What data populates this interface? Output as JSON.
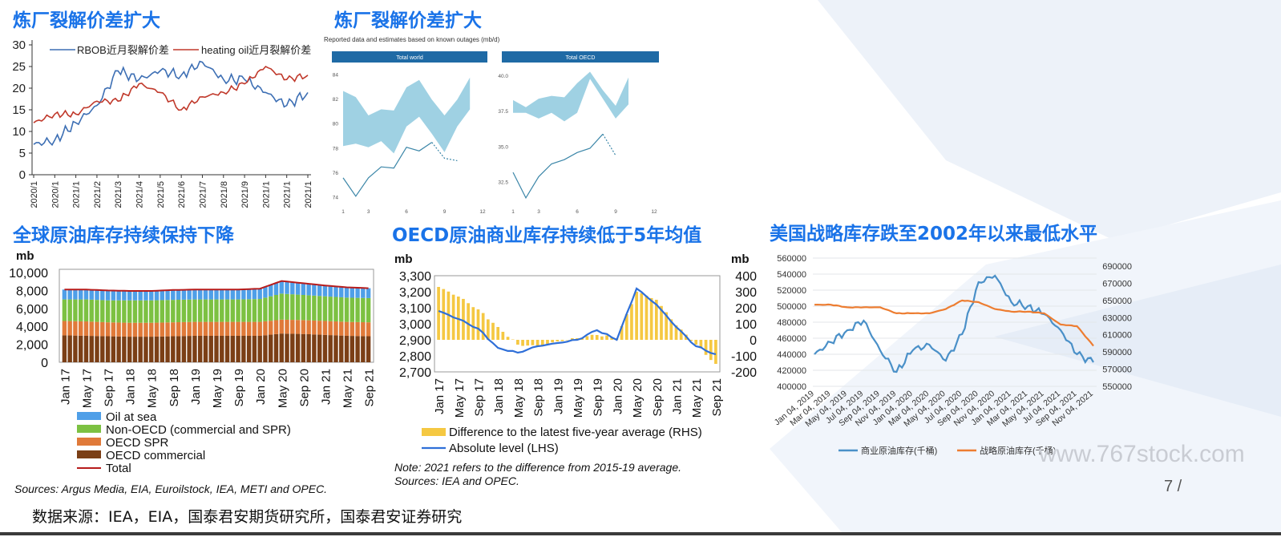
{
  "slide": {
    "page_number": "7 /",
    "watermark": "www.767stock.com",
    "source": "数据来源：IEA，EIA，国泰君安期货研究所，国泰君安证券研究"
  },
  "colors": {
    "title_blue": "#1a73e8",
    "bg_shape": "#edf2f9"
  },
  "panels": {
    "crack_spread": {
      "title": "炼厂裂解价差扩大",
      "legend": [
        "RBOB近月裂解价差",
        "heating oil近月裂解价差"
      ]
    },
    "iea_outages": {
      "title": "炼厂裂解价差扩大",
      "note": "Reported data and estimates based on known outages (mb/d)",
      "tabs": [
        "Total world",
        "Total OECD"
      ]
    },
    "global_stocks": {
      "title": "全球原油库存持续保持下降",
      "unit": "mb",
      "legend": [
        "Oil at sea",
        "Non-OECD (commercial and SPR)",
        "OECD SPR",
        "OECD commercial",
        "Total"
      ],
      "sources": "Sources: Argus Media, EIA, Euroilstock, IEA, METI and OPEC."
    },
    "oecd_stocks": {
      "title": "OECD原油商业库存持续低于5年均值",
      "unit_left": "mb",
      "unit_right": "mb",
      "legend": [
        "Difference to the latest five-year average (RHS)",
        "Absolute level (LHS)"
      ],
      "note": "Note: 2021 refers to the difference from 2015-19 average.",
      "sources": "Sources: IEA and OPEC."
    },
    "us_spr": {
      "title": "美国战略库存跌至2002年以来最低水平",
      "legend": [
        "商业原油库存(千桶)",
        "战略原油库存(千桶)"
      ]
    }
  },
  "chart_data": [
    {
      "type": "line",
      "id": "crack_spread",
      "x": [
        "2020/1",
        "2020/1",
        "2021/1",
        "2021/2",
        "2021/3",
        "2021/4",
        "2021/5",
        "2021/6",
        "2021/7",
        "2021/8",
        "2021/9",
        "2021/1",
        "2021/1",
        "2021/1"
      ],
      "ylim": [
        0,
        30
      ],
      "yticks": [
        "0",
        "5",
        "10",
        "15",
        "20",
        "25",
        "30"
      ],
      "series": [
        {
          "name": "RBOB近月裂解价差",
          "color": "#3d6fb4",
          "values": [
            7,
            8,
            12,
            16,
            24,
            22,
            24,
            23,
            26,
            22,
            22,
            19,
            16,
            19
          ]
        },
        {
          "name": "heating oil近月裂解价差",
          "color": "#c0392b",
          "values": [
            12,
            14,
            14,
            17,
            17,
            21,
            19,
            15,
            18,
            19,
            21,
            25,
            22,
            23
          ]
        }
      ]
    },
    {
      "type": "area",
      "id": "iea_total_world",
      "x": [
        1,
        2,
        3,
        4,
        5,
        6,
        7,
        8,
        9,
        10,
        11,
        12
      ],
      "xticks": [
        "1",
        "3",
        "6",
        "9",
        "12"
      ],
      "yticks": [
        "74",
        "76",
        "78",
        "80",
        "82",
        "84"
      ],
      "ylim": [
        73.5,
        84.5
      ],
      "band_low": [
        78.2,
        78.4,
        78.1,
        78.6,
        77.6,
        79.8,
        80.6,
        79.2,
        77.7,
        79.8,
        81.2,
        null
      ],
      "band_high": [
        82.7,
        82.2,
        80.7,
        81.2,
        81.1,
        83.0,
        83.6,
        82.0,
        80.7,
        82.0,
        83.8,
        null
      ],
      "series": [
        {
          "name": "",
          "values": [
            75.6,
            74.1,
            75.6,
            76.5,
            76.4,
            78.1,
            77.8,
            78.5,
            null,
            null,
            null,
            null
          ]
        },
        {
          "name": "",
          "style": "dotted",
          "values": [
            null,
            null,
            null,
            null,
            null,
            null,
            null,
            78.5,
            77.2,
            77.0,
            null,
            null
          ]
        }
      ]
    },
    {
      "type": "area",
      "id": "iea_total_oecd",
      "x": [
        1,
        2,
        3,
        4,
        5,
        6,
        7,
        8,
        9,
        10,
        11,
        12
      ],
      "xticks": [
        "1",
        "3",
        "6",
        "9",
        "12"
      ],
      "yticks": [
        "32.5",
        "35.0",
        "37.5",
        "40.0"
      ],
      "ylim": [
        31,
        40.5
      ],
      "band_low": [
        37.4,
        37.4,
        37.0,
        37.4,
        36.8,
        37.4,
        39.8,
        38.4,
        37.0,
        38.0,
        null,
        null
      ],
      "band_high": [
        38.3,
        37.8,
        38.4,
        38.6,
        38.5,
        39.5,
        40.3,
        39.0,
        37.9,
        39.9,
        null,
        null
      ],
      "series": [
        {
          "name": "",
          "values": [
            33.2,
            31.4,
            32.9,
            33.8,
            34.1,
            34.6,
            34.9,
            35.9,
            null,
            null,
            null,
            null
          ]
        },
        {
          "name": "",
          "style": "dotted",
          "values": [
            null,
            null,
            null,
            null,
            null,
            null,
            null,
            35.9,
            34.4,
            null,
            null,
            null
          ]
        }
      ]
    },
    {
      "type": "bar",
      "id": "global_stocks",
      "categories": [
        "Jan 17",
        "May 17",
        "Sep 17",
        "Jan 18",
        "May 18",
        "Sep 18",
        "Jan 19",
        "May 19",
        "Sep 19",
        "Jan 20",
        "May 20",
        "Sep 20",
        "Jan 21",
        "May 21",
        "Sep 21"
      ],
      "yticks": [
        "0",
        "2,000",
        "4,000",
        "6,000",
        "8,000",
        "10,000"
      ],
      "ylim": [
        0,
        10000
      ],
      "series": [
        {
          "name": "OECD commercial",
          "color": "#7b3f16",
          "values": [
            3000,
            2950,
            2900,
            2850,
            2850,
            2900,
            2950,
            2950,
            2950,
            2950,
            3200,
            3150,
            3050,
            2950,
            2900
          ]
        },
        {
          "name": "OECD SPR",
          "color": "#e07a3a",
          "values": [
            1600,
            1600,
            1550,
            1550,
            1550,
            1550,
            1550,
            1550,
            1550,
            1550,
            1550,
            1550,
            1550,
            1550,
            1550
          ]
        },
        {
          "name": "Non-OECD (commercial and SPR)",
          "color": "#7cc142",
          "values": [
            2400,
            2450,
            2450,
            2500,
            2500,
            2500,
            2500,
            2500,
            2500,
            2550,
            2900,
            2800,
            2750,
            2700,
            2700
          ]
        },
        {
          "name": "Oil at sea",
          "color": "#4f9fe8",
          "values": [
            1100,
            1100,
            1100,
            1050,
            1050,
            1100,
            1100,
            1100,
            1100,
            1150,
            1400,
            1300,
            1200,
            1150,
            1100
          ]
        },
        {
          "name": "Total",
          "color": "#b71c1c",
          "type": "line",
          "values": [
            8100,
            8100,
            8000,
            7950,
            7950,
            8050,
            8100,
            8100,
            8100,
            8200,
            9050,
            8800,
            8550,
            8350,
            8250
          ]
        }
      ]
    },
    {
      "type": "bar",
      "id": "oecd_stocks",
      "categories": [
        "Jan 17",
        "May 17",
        "Sep 17",
        "Jan 18",
        "May 18",
        "Sep 18",
        "Jan 19",
        "May 19",
        "Sep 19",
        "Jan 20",
        "May 20",
        "Sep 20",
        "Jan 21",
        "May 21",
        "Sep 21"
      ],
      "yticks_left": [
        "2,700",
        "2,800",
        "2,900",
        "3,000",
        "3,100",
        "3,200",
        "3,300"
      ],
      "ylim_left": [
        2700,
        3300
      ],
      "yticks_right": [
        "-200",
        "-100",
        "0",
        "100",
        "200",
        "300",
        "400"
      ],
      "ylim_right": [
        -200,
        400
      ],
      "series": [
        {
          "name": "Difference to the latest five-year average (RHS)",
          "color": "#f5c842",
          "axis": "right",
          "values": [
            330,
            270,
            190,
            80,
            -30,
            -40,
            -10,
            10,
            30,
            10,
            300,
            250,
            90,
            -30,
            -150
          ]
        },
        {
          "name": "Absolute level (LHS)",
          "color": "#2f6fd8",
          "axis": "left",
          "type": "line",
          "values": [
            3080,
            3030,
            2970,
            2850,
            2820,
            2860,
            2880,
            2900,
            2960,
            2900,
            3220,
            3120,
            2980,
            2860,
            2810
          ]
        }
      ]
    },
    {
      "type": "line",
      "id": "us_spr",
      "x": [
        "Jan 04, 2019",
        "Mar 04, 2019",
        "May 04, 2019",
        "Jul 04, 2019",
        "Sep 04, 2019",
        "Nov 04, 2019",
        "Jan 04, 2020",
        "Mar 04, 2020",
        "May 04, 2020",
        "Jul 04, 2020",
        "Sep 04, 2020",
        "Nov 04, 2020",
        "Jan 04, 2021",
        "Mar 04, 2021",
        "May 04, 2021",
        "Jul 04, 2021",
        "Sep 04, 2021",
        "Nov 04, 2021"
      ],
      "yticks_left": [
        "400000",
        "420000",
        "440000",
        "460000",
        "480000",
        "500000",
        "520000",
        "540000",
        "560000"
      ],
      "ylim_left": [
        400000,
        560000
      ],
      "yticks_right": [
        "550000",
        "570000",
        "590000",
        "610000",
        "630000",
        "650000",
        "670000",
        "690000"
      ],
      "ylim_right": [
        550000,
        690000
      ],
      "series": [
        {
          "name": "商业原油库存(千桶)",
          "color": "#4a90c8",
          "axis": "left",
          "values": [
            440000,
            455000,
            470000,
            482000,
            445000,
            418000,
            445000,
            452000,
            432000,
            465000,
            530000,
            538000,
            505000,
            500000,
            490000,
            470000,
            440000,
            430000
          ]
        },
        {
          "name": "战略原油库存(千桶)",
          "color": "#ed7d31",
          "axis": "right",
          "values": [
            645000,
            645000,
            642000,
            642000,
            642000,
            635000,
            635000,
            635000,
            640000,
            650000,
            648000,
            640000,
            637000,
            637000,
            635000,
            622000,
            620000,
            597000
          ]
        }
      ]
    }
  ]
}
